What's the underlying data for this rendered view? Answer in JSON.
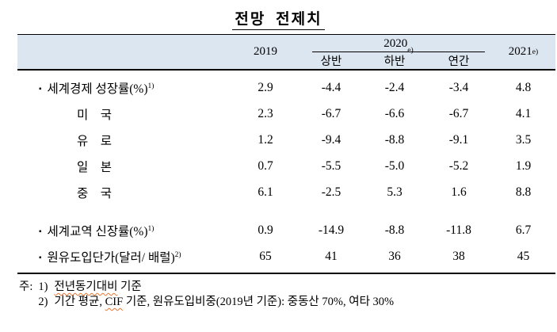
{
  "title": "전망 전제치",
  "table": {
    "header": {
      "col2019": "2019",
      "col2020": "2020",
      "col2020_sup": "e)",
      "sub2020": [
        "상반",
        "하반",
        "연간"
      ],
      "col2021": "2021",
      "col2021_sup": "e)"
    },
    "rows": [
      {
        "bullet": "▪",
        "label": "세계경제 성장률(%)",
        "sup": "1)",
        "values": [
          "2.9",
          "-4.4",
          "-2.4",
          "-3.4",
          "4.8"
        ]
      },
      {
        "label": "미　국",
        "values": [
          "2.3",
          "-6.7",
          "-6.6",
          "-6.7",
          "4.1"
        ]
      },
      {
        "label": "유　로",
        "values": [
          "1.2",
          "-9.4",
          "-8.8",
          "-9.1",
          "3.5"
        ]
      },
      {
        "label": "일　본",
        "values": [
          "0.7",
          "-5.5",
          "-5.0",
          "-5.2",
          "1.9"
        ]
      },
      {
        "label": "중　국",
        "values": [
          "6.1",
          "-2.5",
          "5.3",
          "1.6",
          "8.8"
        ]
      },
      {
        "bullet": "▪",
        "label": "세계교역 신장률(%)",
        "sup": "1)",
        "values": [
          "0.9",
          "-14.9",
          "-8.8",
          "-11.8",
          "6.7"
        ]
      },
      {
        "bullet": "▪",
        "label": "원유도입단가(달러/ 배럴)",
        "sup": "2)",
        "values": [
          "65",
          "41",
          "36",
          "38",
          "45"
        ]
      }
    ]
  },
  "notes": {
    "label": "주:",
    "note1": {
      "num": "1)",
      "wavy": "전년동기대비",
      "after": " 기준"
    },
    "note2": {
      "num": "2)",
      "pre": "기간 평균, ",
      "wavy": "CIF",
      "after": " 기준, 원유도입비중(2019년 기준): 중동산 70%, 여타 30%"
    }
  }
}
